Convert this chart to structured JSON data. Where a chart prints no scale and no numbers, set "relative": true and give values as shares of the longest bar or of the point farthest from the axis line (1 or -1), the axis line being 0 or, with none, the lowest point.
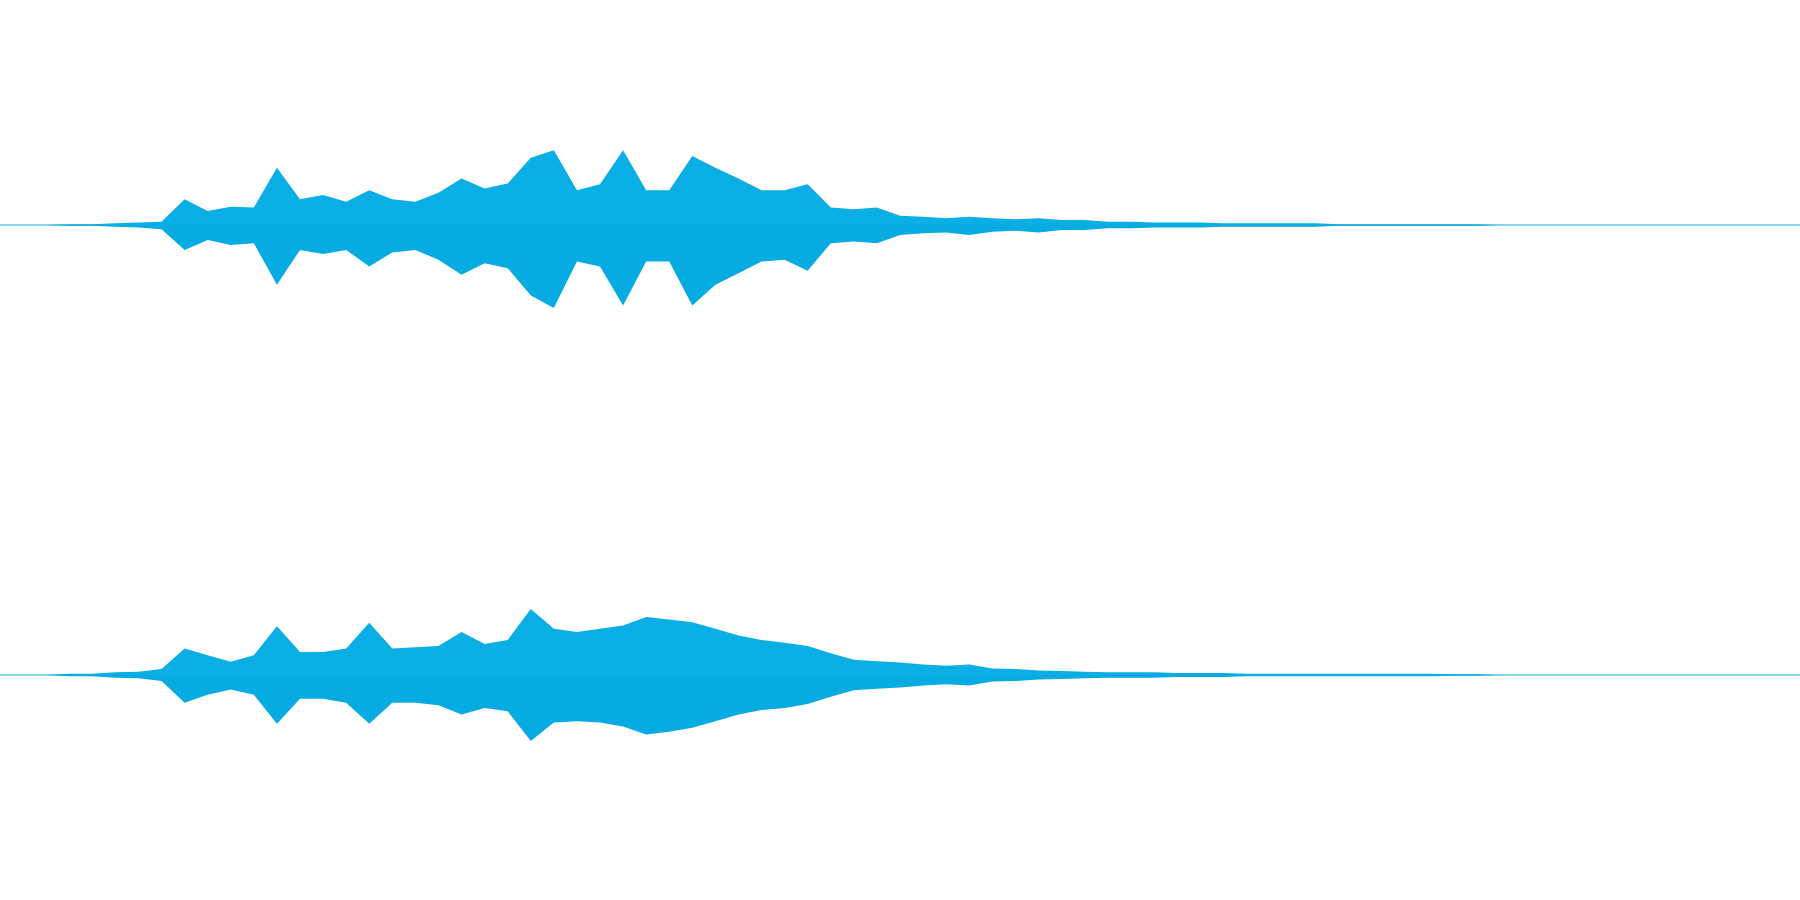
{
  "chart_data": [
    {
      "type": "area",
      "relative": true,
      "categories": [
        null,
        null,
        null,
        null,
        null,
        null,
        null,
        null,
        null,
        null,
        null,
        null,
        null,
        null,
        null,
        null,
        null,
        null,
        null,
        null,
        null,
        null,
        null,
        null,
        null,
        null,
        null,
        null,
        null,
        null,
        null,
        null,
        null,
        null,
        null,
        null,
        null,
        null,
        null,
        null,
        null,
        null,
        null,
        null,
        null,
        null,
        null,
        null,
        null,
        null,
        null,
        null,
        null,
        null,
        null,
        null,
        null,
        null,
        null,
        null,
        null,
        null,
        null,
        null,
        null,
        null,
        null,
        null,
        null,
        null,
        null,
        null,
        null,
        null,
        null,
        null,
        null,
        null,
        null
      ],
      "series": [
        {
          "color": "#08aee4",
          "values": [
            0,
            0,
            0,
            0.01,
            0.01,
            0.02,
            0.03,
            0.04,
            0.31,
            0.17,
            0.22,
            0.21,
            0.69,
            0.31,
            0.36,
            0.28,
            0.42,
            0.31,
            0.28,
            0.39,
            0.56,
            0.44,
            0.5,
            0.81,
            0.9,
            0.42,
            0.49,
            0.9,
            0.42,
            0.42,
            0.83,
            0.69,
            0.56,
            0.42,
            0.42,
            0.49,
            0.21,
            0.19,
            0.21,
            0.11,
            0.1,
            0.08,
            0.1,
            0.08,
            0.07,
            0.08,
            0.06,
            0.06,
            0.04,
            0.04,
            0.03,
            0.03,
            0.03,
            0.02,
            0.02,
            0.02,
            0.02,
            0.02,
            0.01,
            0.01,
            0.01,
            0.01,
            0.01,
            0.01,
            0.01,
            0,
            0,
            0,
            0,
            0,
            0,
            0,
            0,
            0,
            0,
            0,
            0,
            0,
            0
          ]
        },
        {
          "color": "#06abe1",
          "values": [
            0,
            0,
            0,
            -0.01,
            -0.01,
            -0.02,
            -0.03,
            -0.05,
            -0.3,
            -0.18,
            -0.24,
            -0.22,
            -0.72,
            -0.3,
            -0.35,
            -0.3,
            -0.5,
            -0.33,
            -0.3,
            -0.42,
            -0.6,
            -0.46,
            -0.52,
            -0.85,
            -1,
            -0.44,
            -0.5,
            -0.97,
            -0.44,
            -0.44,
            -0.97,
            -0.72,
            -0.58,
            -0.44,
            -0.42,
            -0.55,
            -0.22,
            -0.2,
            -0.22,
            -0.12,
            -0.1,
            -0.09,
            -0.12,
            -0.08,
            -0.07,
            -0.09,
            -0.06,
            -0.06,
            -0.04,
            -0.04,
            -0.03,
            -0.03,
            -0.03,
            -0.02,
            -0.02,
            -0.02,
            -0.02,
            -0.02,
            -0.01,
            -0.01,
            -0.01,
            -0.01,
            -0.01,
            -0.01,
            -0.01,
            0,
            0,
            0,
            0,
            0,
            0,
            0,
            0,
            0,
            0,
            0,
            0,
            0,
            0
          ]
        }
      ]
    },
    {
      "type": "area",
      "relative": true,
      "categories": [
        null,
        null,
        null,
        null,
        null,
        null,
        null,
        null,
        null,
        null,
        null,
        null,
        null,
        null,
        null,
        null,
        null,
        null,
        null,
        null,
        null,
        null,
        null,
        null,
        null,
        null,
        null,
        null,
        null,
        null,
        null,
        null,
        null,
        null,
        null,
        null,
        null,
        null,
        null,
        null,
        null,
        null,
        null,
        null,
        null,
        null,
        null,
        null,
        null,
        null,
        null,
        null,
        null,
        null,
        null,
        null,
        null,
        null,
        null,
        null,
        null,
        null,
        null,
        null,
        null,
        null,
        null,
        null,
        null,
        null,
        null,
        null,
        null,
        null,
        null,
        null,
        null,
        null,
        null
      ],
      "series": [
        {
          "color": "#08aee4",
          "values": [
            0,
            0,
            0,
            0.02,
            0.02,
            0.04,
            0.05,
            0.09,
            0.4,
            0.3,
            0.2,
            0.3,
            0.74,
            0.35,
            0.35,
            0.4,
            0.79,
            0.4,
            0.42,
            0.44,
            0.65,
            0.47,
            0.53,
            1,
            0.7,
            0.65,
            0.7,
            0.75,
            0.88,
            0.84,
            0.8,
            0.7,
            0.6,
            0.53,
            0.49,
            0.44,
            0.33,
            0.23,
            0.21,
            0.19,
            0.16,
            0.14,
            0.16,
            0.1,
            0.09,
            0.07,
            0.06,
            0.05,
            0.04,
            0.04,
            0.04,
            0.03,
            0.03,
            0.03,
            0.02,
            0.02,
            0.02,
            0.02,
            0.02,
            0.02,
            0.02,
            0.02,
            0.02,
            0.01,
            0.01,
            0,
            0,
            0,
            0,
            0,
            0,
            0,
            0,
            0,
            0,
            0,
            0,
            0,
            0
          ]
        },
        {
          "color": "#06abe1",
          "values": [
            0,
            0,
            0,
            -0.02,
            -0.02,
            -0.04,
            -0.05,
            -0.09,
            -0.42,
            -0.3,
            -0.22,
            -0.3,
            -0.74,
            -0.36,
            -0.36,
            -0.42,
            -0.74,
            -0.42,
            -0.42,
            -0.46,
            -0.6,
            -0.5,
            -0.55,
            -1,
            -0.72,
            -0.7,
            -0.72,
            -0.78,
            -0.9,
            -0.86,
            -0.8,
            -0.7,
            -0.6,
            -0.53,
            -0.5,
            -0.44,
            -0.33,
            -0.23,
            -0.21,
            -0.19,
            -0.16,
            -0.14,
            -0.16,
            -0.1,
            -0.09,
            -0.07,
            -0.06,
            -0.05,
            -0.04,
            -0.04,
            -0.04,
            -0.03,
            -0.03,
            -0.03,
            -0.02,
            -0.02,
            -0.02,
            -0.02,
            -0.02,
            -0.02,
            -0.02,
            -0.02,
            -0.02,
            -0.01,
            -0.01,
            0,
            0,
            0,
            0,
            0,
            0,
            0,
            0,
            0,
            0,
            0,
            0,
            0,
            0
          ]
        }
      ]
    }
  ]
}
